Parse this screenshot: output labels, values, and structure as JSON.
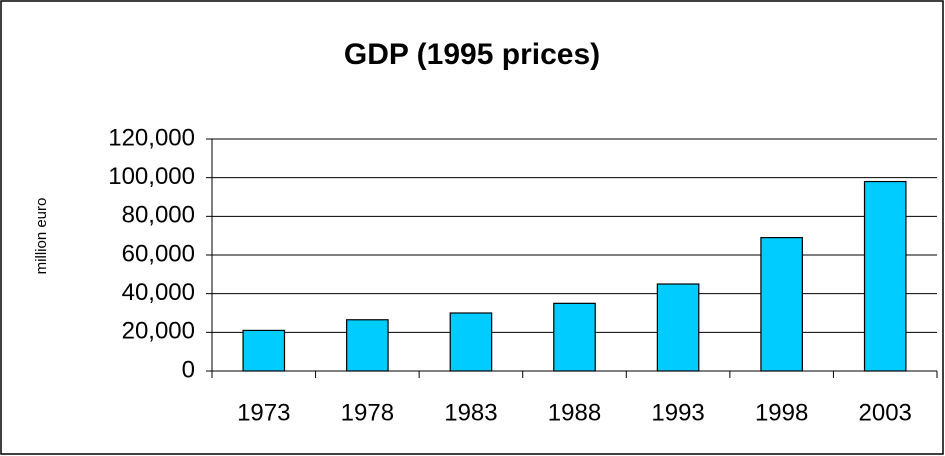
{
  "chart_data": {
    "type": "bar",
    "title": "GDP (1995 prices)",
    "y_label": "million euro",
    "categories": [
      "1973",
      "1978",
      "1983",
      "1988",
      "1993",
      "1998",
      "2003"
    ],
    "values": [
      21000,
      26500,
      30000,
      35000,
      45000,
      69000,
      98000
    ],
    "color": "#00ccff",
    "ylim": [
      0,
      120000
    ],
    "yticks": [
      0,
      {
        "value": 20000,
        "label": "20,000"
      },
      {
        "value": 40000,
        "label": "40,000"
      },
      {
        "value": 60000,
        "label": "60,000"
      },
      {
        "value": 80000,
        "label": "80,000"
      },
      {
        "value": 100000,
        "label": "100,000"
      },
      {
        "value": 120000,
        "label": "120,000"
      }
    ],
    "grid": true
  }
}
